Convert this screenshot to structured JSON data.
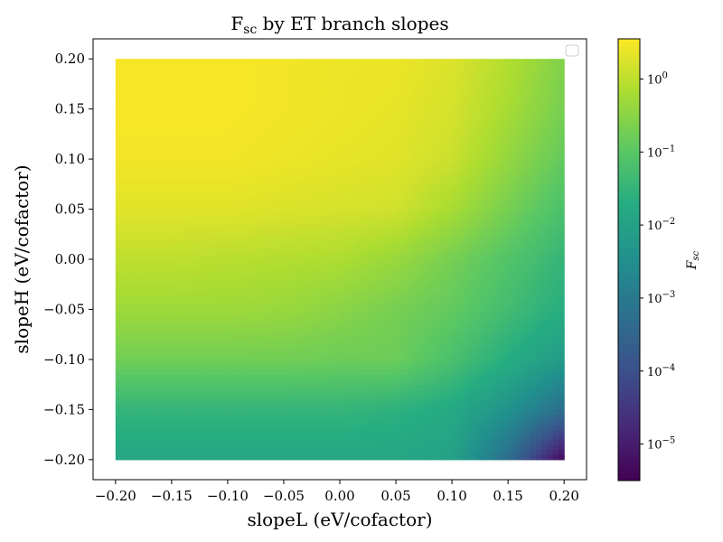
{
  "chart_data": {
    "type": "heatmap",
    "title": "F_sc by ET branch slopes",
    "title_main": "F",
    "title_sub": "sc",
    "title_rest": " by ET branch slopes",
    "xlabel": "slopeL (eV/cofactor)",
    "ylabel": "slopeH (eV/cofactor)",
    "colorbar_label_main": "F",
    "colorbar_label_sub": "sc",
    "colormap": "viridis",
    "color_scale": "log",
    "grid": false,
    "legend": "top-right (empty)",
    "xlim": [
      -0.22,
      0.22
    ],
    "ylim": [
      -0.22,
      0.22
    ],
    "x_ticks": [
      -0.2,
      -0.15,
      -0.1,
      -0.05,
      0.0,
      0.05,
      0.1,
      0.15,
      0.2
    ],
    "x_tick_labels": [
      "−0.20",
      "−0.15",
      "−0.10",
      "−0.05",
      "0.00",
      "0.05",
      "0.10",
      "0.15",
      "0.20"
    ],
    "y_ticks": [
      -0.2,
      -0.15,
      -0.1,
      -0.05,
      0.0,
      0.05,
      0.1,
      0.15,
      0.2
    ],
    "y_tick_labels": [
      "−0.20",
      "−0.15",
      "−0.10",
      "−0.05",
      "0.00",
      "0.05",
      "0.10",
      "0.15",
      "0.20"
    ],
    "colorbar_range_log10": [
      -5.5,
      0.55
    ],
    "colorbar_ticks": [
      {
        "exp": 0,
        "label": "0"
      },
      {
        "exp": -1,
        "label": "−1"
      },
      {
        "exp": -2,
        "label": "−2"
      },
      {
        "exp": -3,
        "label": "−3"
      },
      {
        "exp": -4,
        "label": "−4"
      },
      {
        "exp": -5,
        "label": "−5"
      }
    ],
    "x": [
      -0.2,
      -0.15,
      -0.1,
      -0.05,
      0.0,
      0.05,
      0.1,
      0.15,
      0.2
    ],
    "y": [
      -0.2,
      -0.15,
      -0.1,
      -0.05,
      0.0,
      0.05,
      0.1,
      0.15,
      0.2
    ],
    "values_log10": [
      [
        -1.9,
        -1.9,
        -1.9,
        -1.9,
        -1.9,
        -1.9,
        -2.0,
        -3.3,
        -5.4
      ],
      [
        -1.5,
        -1.5,
        -1.5,
        -1.5,
        -1.5,
        -1.6,
        -1.8,
        -2.4,
        -3.3
      ],
      [
        -0.75,
        -0.75,
        -0.75,
        -0.75,
        -0.8,
        -0.8,
        -1.2,
        -1.7,
        -2.2
      ],
      [
        -0.3,
        -0.3,
        -0.3,
        -0.35,
        -0.5,
        -0.7,
        -0.9,
        -1.3,
        -1.7
      ],
      [
        0.0,
        0.0,
        -0.05,
        -0.1,
        -0.15,
        -0.35,
        -0.7,
        -1.1,
        -1.5
      ],
      [
        0.3,
        0.3,
        0.3,
        0.25,
        0.2,
        0.15,
        -0.2,
        -0.7,
        -1.2
      ],
      [
        0.45,
        0.45,
        0.45,
        0.4,
        0.35,
        0.3,
        0.1,
        -0.4,
        -0.9
      ],
      [
        0.5,
        0.5,
        0.5,
        0.45,
        0.4,
        0.35,
        0.2,
        -0.2,
        -0.7
      ],
      [
        0.5,
        0.5,
        0.5,
        0.45,
        0.4,
        0.4,
        0.25,
        -0.1,
        -0.6
      ]
    ]
  }
}
